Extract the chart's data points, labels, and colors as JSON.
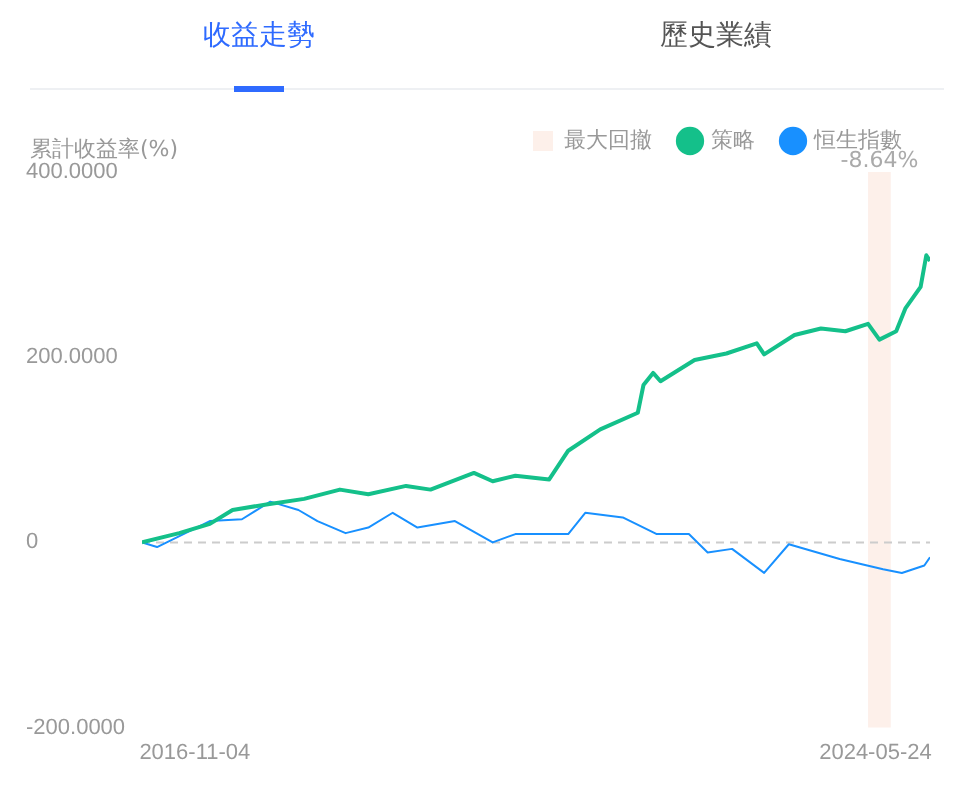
{
  "chart_data": {
    "type": "line",
    "annotations": [
      "收益走勢",
      "歷史業績",
      "-8.64%"
    ],
    "ylabel": "累計收益率(%)",
    "xlim": [
      "2016-04-04",
      "2024-12-31"
    ],
    "xticks": [
      "2016-11-04",
      "2024-05-24"
    ],
    "ylim": [
      -200,
      400
    ],
    "yticks": [
      {
        "value": -200,
        "label": "-200.0000"
      },
      0,
      {
        "value": 200,
        "label": "200.0000"
      },
      {
        "value": 400,
        "label": "400.0000"
      }
    ],
    "grid": false,
    "legend": "top right",
    "marker": "none",
    "line_style": "solid",
    "bands": [
      {
        "axis": "x",
        "from": "2024-04-24",
        "to": "2024-07-25",
        "label": "最大回撤",
        "color": "#fdf0ea"
      }
    ],
    "ref_lines": [
      {
        "axis": "y",
        "value": 0,
        "label": null,
        "color": "#cccccc",
        "line_style": "dashed"
      }
    ],
    "series": [
      {
        "name": "策略",
        "color": "#14c08a",
        "x": [
          "2016-04-04",
          "2016-09-02",
          "2017-01-04",
          "2017-04-06",
          "2017-08-21",
          "2018-01-21",
          "2018-06-15",
          "2018-10-08",
          "2019-03-10",
          "2019-06-17",
          "2019-12-10",
          "2020-02-24",
          "2020-05-26",
          "2020-10-10",
          "2020-12-26",
          "2021-05-05",
          "2021-10-04",
          "2021-10-27",
          "2021-12-05",
          "2022-01-04",
          "2022-05-22",
          "2022-09-28",
          "2023-01-29",
          "2023-02-28",
          "2023-07-01",
          "2023-10-16",
          "2024-01-23",
          "2024-04-24",
          "2024-06-09",
          "2024-08-16",
          "2024-09-23",
          "2024-11-23",
          "2024-12-16",
          "2024-12-31"
        ],
        "values": [
          0,
          10,
          20,
          35,
          41,
          47,
          57,
          52,
          61,
          57,
          75,
          66,
          72,
          68,
          99,
          122,
          140,
          170,
          183,
          174,
          197,
          204,
          215,
          203,
          224,
          231,
          228,
          236,
          219,
          228,
          253,
          276,
          310,
          304
        ]
      },
      {
        "name": "恒生指數",
        "color": "#1890ff",
        "x": [
          "2016-04-04",
          "2016-06-04",
          "2017-01-04",
          "2017-05-14",
          "2017-09-06",
          "2017-12-29",
          "2018-03-16",
          "2018-07-08",
          "2018-10-08",
          "2019-01-15",
          "2019-04-25",
          "2019-09-24",
          "2020-02-24",
          "2020-05-26",
          "2020-10-10",
          "2020-12-26",
          "2021-03-05",
          "2021-08-04",
          "2021-12-20",
          "2022-04-29",
          "2022-07-14",
          "2022-10-21",
          "2023-02-28",
          "2023-06-08",
          "2023-12-31",
          "2024-06-24",
          "2024-09-08",
          "2024-12-08",
          "2024-12-31"
        ],
        "values": [
          0,
          -5,
          23,
          25,
          44,
          35,
          23,
          10,
          16,
          32,
          16,
          23,
          0,
          9,
          9,
          9,
          32,
          27,
          9,
          9,
          -11,
          -7,
          -33,
          -2,
          -18,
          -29,
          -33,
          -25,
          -16
        ]
      }
    ]
  }
}
